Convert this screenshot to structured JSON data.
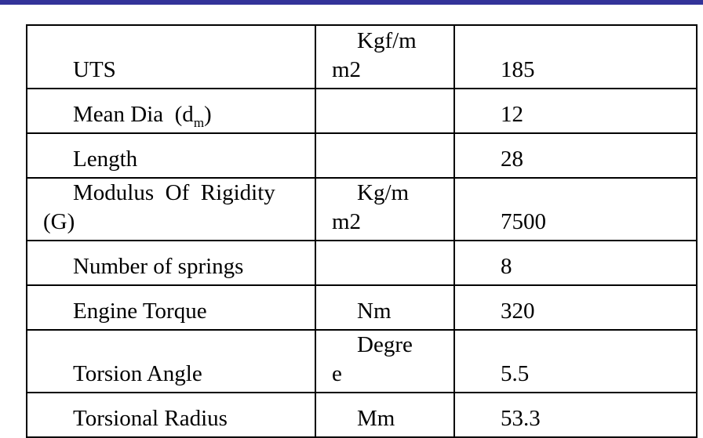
{
  "header_bar_color": "#333399",
  "rows": [
    {
      "label": [
        "UTS"
      ],
      "unit": [
        "Kgf/m",
        "m2"
      ],
      "value": "185"
    },
    {
      "label_main": "Mean Dia  (d",
      "label_sub": "m",
      "label_end": ")",
      "unit": [],
      "value": "12"
    },
    {
      "label": [
        "Length"
      ],
      "unit": [],
      "value": "28"
    },
    {
      "label": [
        "Modulus  Of  Rigidity",
        "(G)"
      ],
      "unit": [
        "Kg/m",
        "m2"
      ],
      "value": "7500"
    },
    {
      "label": [
        "Number of springs"
      ],
      "unit": [],
      "value": "8"
    },
    {
      "label": [
        "Engine Torque"
      ],
      "unit": [
        "Nm"
      ],
      "value": "320"
    },
    {
      "label": [
        "Torsion Angle"
      ],
      "unit": [
        "Degre",
        "e"
      ],
      "value": "5.5"
    },
    {
      "label": [
        "Torsional Radius"
      ],
      "unit": [
        "Mm"
      ],
      "value": "53.3"
    }
  ]
}
